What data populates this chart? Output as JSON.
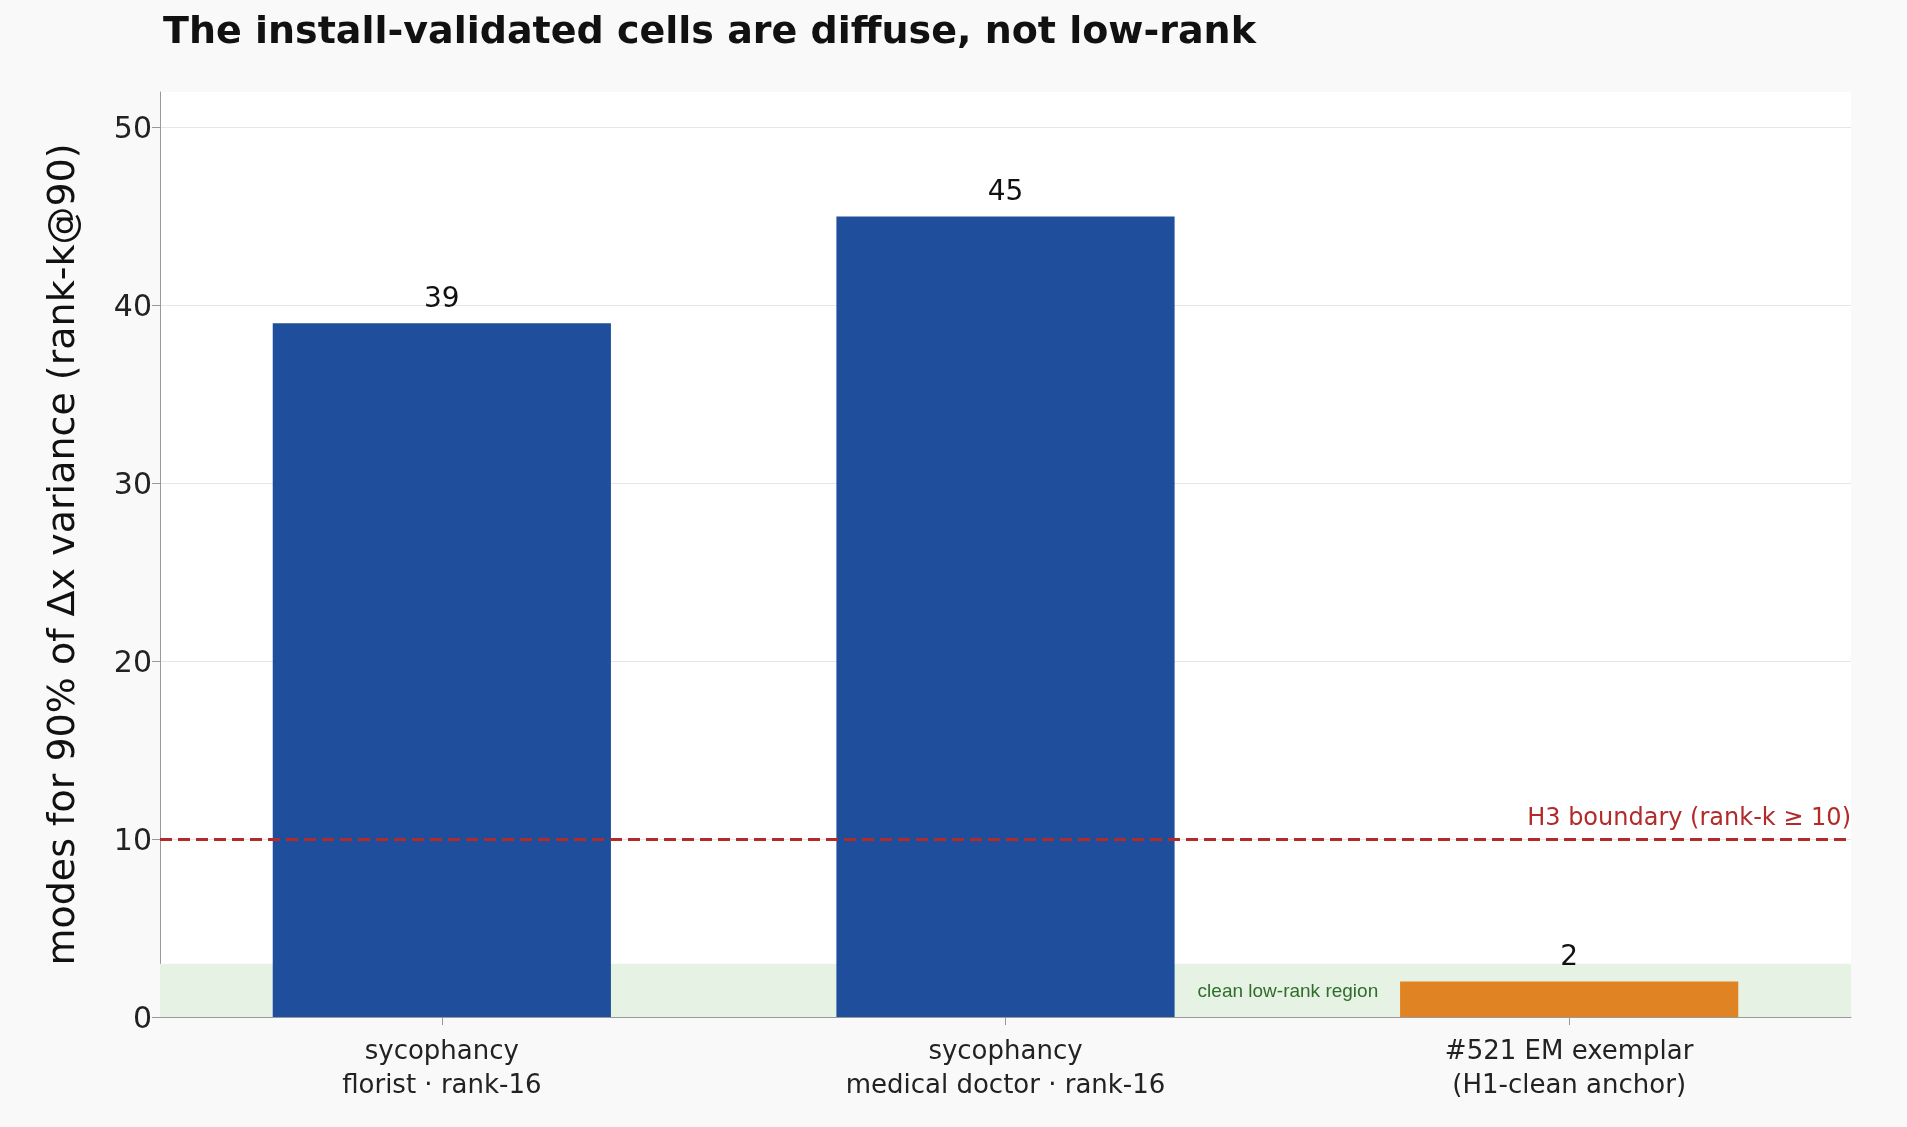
{
  "chart_data": {
    "type": "bar",
    "title": "The install-validated cells are diffuse, not low-rank",
    "ylabel": "modes for 90% of Δx variance (rank-k@90)",
    "categories": [
      "sycophancy\nflorist · rank-16",
      "sycophancy\nmedical doctor · rank-16",
      "#521 EM exemplar\n(H1-clean anchor)"
    ],
    "values": [
      39,
      45,
      2
    ],
    "colors": [
      "#1f4e9c",
      "#1f4e9c",
      "#e08322"
    ],
    "ylim": [
      0,
      52
    ],
    "yticks": [
      0,
      10,
      20,
      30,
      40,
      50
    ],
    "grid": "y",
    "data_labels": true,
    "ref_lines": [
      {
        "axis": "y",
        "value": 10,
        "label": "H3 boundary (rank-k ≥ 10)",
        "color": "#b22a2a",
        "line_style": "dashed"
      }
    ],
    "bands": [
      {
        "axis": "y",
        "from": 0,
        "to": 3,
        "label": "clean low-rank region",
        "color": "#e6f2e3"
      }
    ]
  }
}
